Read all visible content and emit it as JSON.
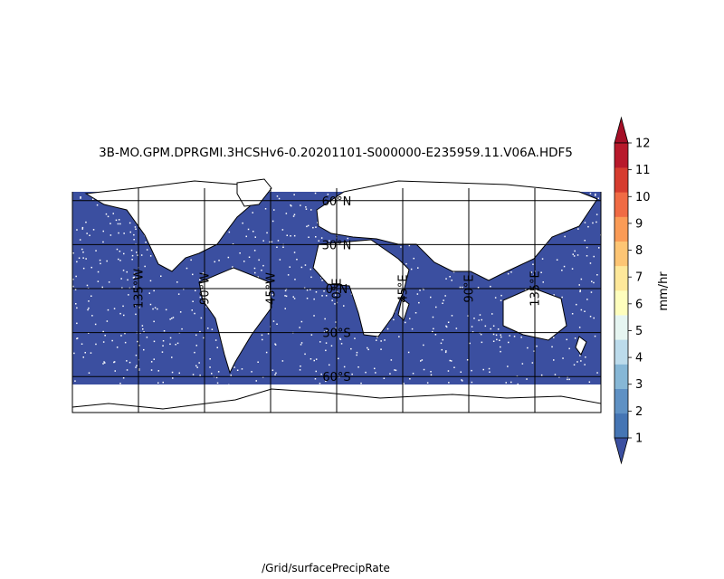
{
  "title": "3B-MO.GPM.DPRGMI.3HCSHv6-0.20201101-S000000-E235959.11.V06A.HDF5",
  "variable": "/Grid/surfacePrecipRate",
  "colorbar": {
    "unit": "mm/hr",
    "ticks": [
      "1",
      "2",
      "3",
      "4",
      "5",
      "6",
      "7",
      "8",
      "9",
      "10",
      "11",
      "12"
    ],
    "colors": [
      "#4575b4",
      "#5f91c4",
      "#86b7d6",
      "#bcdbeb",
      "#e6f5f1",
      "#fefebd",
      "#fee89a",
      "#fdc574",
      "#fa9b56",
      "#f06b44",
      "#d63c2f",
      "#b8192b"
    ],
    "under_color": "#3b4fa0",
    "over_color": "#a50f27",
    "extend": "both"
  },
  "map": {
    "background_color": "#3b4fa0",
    "coastline_color": "#000000",
    "grid_color": "#000000",
    "lat_labels": [
      {
        "lat": 60,
        "text": "60°N"
      },
      {
        "lat": 30,
        "text": "30°N"
      },
      {
        "lat": 0,
        "text": "0°N"
      },
      {
        "lat": -30,
        "text": "30°S"
      },
      {
        "lat": -60,
        "text": "60°S"
      }
    ],
    "lon_labels": [
      {
        "lon": -135,
        "text": "135°W"
      },
      {
        "lon": -90,
        "text": "90°W"
      },
      {
        "lon": -45,
        "text": "45°W"
      },
      {
        "lon": 0,
        "text": "0°E"
      },
      {
        "lon": 45,
        "text": "45°E"
      },
      {
        "lon": 90,
        "text": "90°E"
      },
      {
        "lon": 135,
        "text": "135°E"
      }
    ]
  }
}
